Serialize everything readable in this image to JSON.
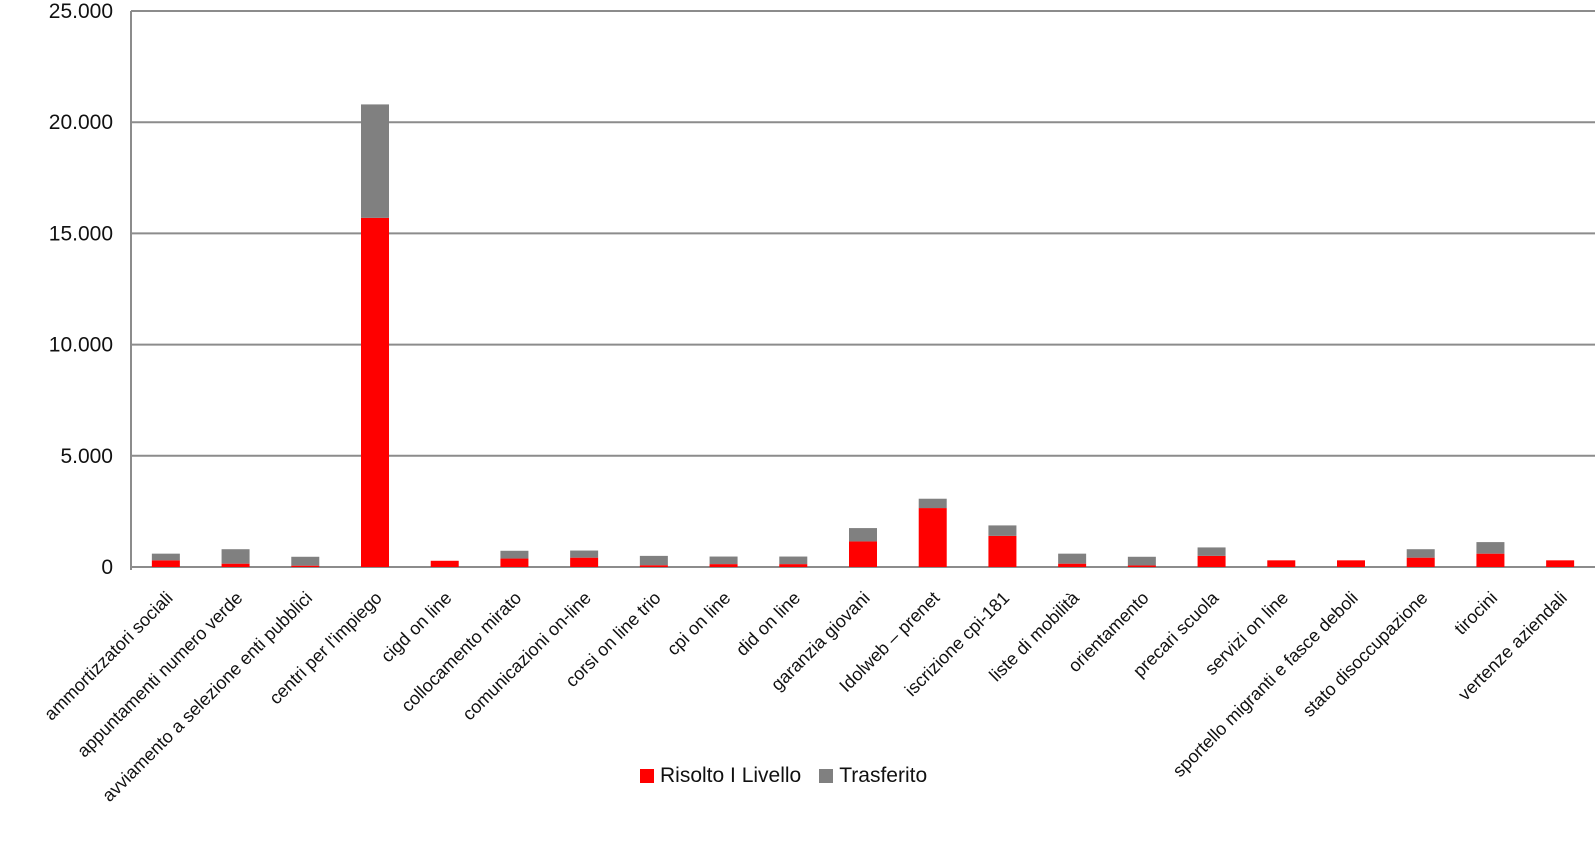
{
  "chart_data": {
    "type": "bar",
    "stacked": true,
    "categories": [
      "ammortizzatori sociali",
      "appuntamenti numero verde",
      "avviamento a selezione enti pubblici",
      "centri per l'impiego",
      "cigd on line",
      "collocamento mirato",
      "comunicazioni on-line",
      "corsi on line trio",
      "cpi on line",
      "did on line",
      "garanzia giovani",
      "Idolweb – prenet",
      "iscrizione cpi-181",
      "liste di mobilità",
      "orientamento",
      "precari scuola",
      "servizi on line",
      "sportello migranti e fasce deboli",
      "stato disoccupazione",
      "tirocini",
      "vertenze aziendali"
    ],
    "series": [
      {
        "name": "Risolto I Livello",
        "color": "#ff0000",
        "values": [
          300,
          150,
          60,
          15700,
          280,
          380,
          420,
          80,
          130,
          130,
          1150,
          2650,
          1400,
          150,
          70,
          500,
          300,
          300,
          420,
          600,
          300
        ]
      },
      {
        "name": "Trasferito",
        "color": "#808080",
        "values": [
          300,
          650,
          400,
          5100,
          0,
          350,
          320,
          420,
          340,
          340,
          600,
          420,
          470,
          450,
          390,
          380,
          0,
          0,
          380,
          520,
          0
        ]
      }
    ],
    "yticks": [
      "0",
      "5.000",
      "10.000",
      "15.000",
      "20.000",
      "25.000"
    ],
    "ylim": [
      0,
      25000
    ],
    "grid": true,
    "legend_position": "bottom",
    "xlabel": "",
    "ylabel": ""
  }
}
